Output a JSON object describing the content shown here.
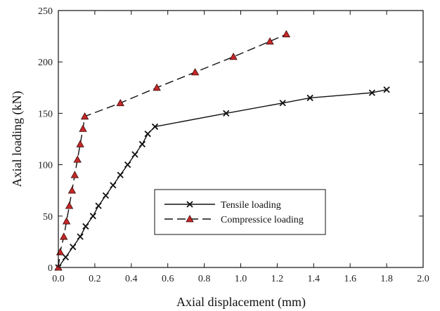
{
  "chart_data": {
    "type": "line",
    "xlabel": "Axial displacement (mm)",
    "ylabel": "Axial loading (kN)",
    "xlim": [
      0.0,
      2.0
    ],
    "ylim": [
      0,
      250
    ],
    "xticks": [
      "0.0",
      "0.2",
      "0.4",
      "0.6",
      "0.8",
      "1.0",
      "1.2",
      "1.4",
      "1.6",
      "1.8",
      "2.0"
    ],
    "yticks": [
      "0",
      "50",
      "100",
      "150",
      "200",
      "250"
    ],
    "grid": false,
    "legend_position": "center-right",
    "series": [
      {
        "name": "Tensile loading",
        "marker": "cross",
        "line_style": "solid",
        "color": "#111111",
        "x": [
          0.0,
          0.04,
          0.08,
          0.12,
          0.15,
          0.19,
          0.22,
          0.26,
          0.3,
          0.34,
          0.38,
          0.42,
          0.46,
          0.49,
          0.53,
          0.92,
          1.23,
          1.38,
          1.72,
          1.8
        ],
        "y": [
          0,
          10,
          20,
          30,
          40,
          50,
          60,
          70,
          80,
          90,
          100,
          110,
          120,
          130,
          137,
          150,
          160,
          165,
          170,
          173
        ]
      },
      {
        "name": "Compressice loading",
        "marker": "triangle",
        "line_style": "dashed",
        "color": "#111111",
        "marker_color": "#c62828",
        "x": [
          0.0,
          0.01,
          0.03,
          0.045,
          0.06,
          0.075,
          0.09,
          0.105,
          0.12,
          0.135,
          0.145,
          0.34,
          0.54,
          0.75,
          0.96,
          1.16,
          1.25
        ],
        "y": [
          0,
          15,
          30,
          45,
          60,
          75,
          90,
          105,
          120,
          135,
          147,
          160,
          175,
          190,
          205,
          220,
          227
        ]
      }
    ]
  }
}
